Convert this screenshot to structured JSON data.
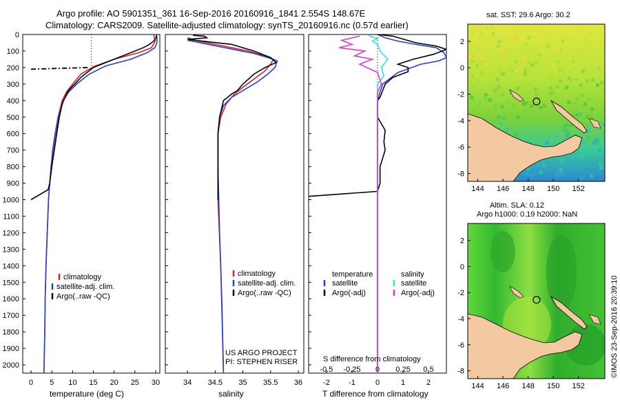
{
  "title_line1": "Argo profile: AO 5901351_361 16-Sep-2016 20160916_1841 2.554S 148.67E",
  "title_line2": "Climatology: CARS2009. Satellite-adjusted climatology: synTS_20160916.nc (0.57d earlier)",
  "credit": "©IMOS 23-Sep-2016 20:39:10",
  "colors": {
    "climatology": "#e31a1c",
    "satellite": "#1f3fd6",
    "argo": "#000000",
    "sal_satellite": "#27e3e3",
    "sal_argo": "#d63adb",
    "land": "#f2c9a0",
    "ocean_deep": "#2f7fd0",
    "ocean_mid": "#38c9a8",
    "ocean_green": "#49c43b",
    "ocean_yellow": "#d8e836"
  },
  "depth_axis": {
    "ticks": [
      "0",
      "100",
      "200",
      "300",
      "400",
      "500",
      "600",
      "700",
      "800",
      "900",
      "1000",
      "1100",
      "1200",
      "1300",
      "1400",
      "1500",
      "1600",
      "1700",
      "1800",
      "1900",
      "2000"
    ]
  },
  "chart_data": [
    {
      "type": "line",
      "title": "",
      "xlabel": "temperature (deg C)",
      "ylabel": "",
      "xlim": [
        -2,
        31
      ],
      "ylim": [
        2050,
        0
      ],
      "xticks": [
        "0",
        "5",
        "10",
        "15",
        "20",
        "25",
        "30"
      ],
      "legend": [
        "climatology",
        "satellite-adj. clim.",
        "Argo(..raw -QC)"
      ],
      "series": [
        {
          "name": "climatology",
          "color_key": "climatology",
          "points": [
            [
              29.5,
              0
            ],
            [
              29.7,
              20
            ],
            [
              29.9,
              40
            ],
            [
              29,
              80
            ],
            [
              26,
              110
            ],
            [
              20,
              150
            ],
            [
              15,
              195
            ],
            [
              12,
              240
            ],
            [
              10,
              300
            ],
            [
              8.5,
              350
            ],
            [
              7.5,
              400
            ],
            [
              6.5,
              500
            ],
            [
              5.8,
              600
            ],
            [
              5.2,
              700
            ],
            [
              4.8,
              800
            ],
            [
              4.5,
              900
            ],
            [
              4.2,
              1000
            ],
            [
              3.9,
              1200
            ],
            [
              3.6,
              1400
            ],
            [
              3.4,
              1600
            ],
            [
              3.3,
              1800
            ],
            [
              3.1,
              2050
            ]
          ]
        },
        {
          "name": "satellite-adj. clim.",
          "color_key": "satellite",
          "points": [
            [
              30.2,
              0
            ],
            [
              30.3,
              20
            ],
            [
              30.3,
              50
            ],
            [
              29.8,
              80
            ],
            [
              28,
              110
            ],
            [
              24,
              150
            ],
            [
              18,
              190
            ],
            [
              14,
              240
            ],
            [
              11,
              300
            ],
            [
              9,
              350
            ],
            [
              7.8,
              400
            ],
            [
              6.6,
              500
            ],
            [
              5.9,
              600
            ],
            [
              5.3,
              700
            ],
            [
              4.9,
              800
            ],
            [
              4.5,
              900
            ],
            [
              4.2,
              1000
            ],
            [
              3.9,
              1200
            ],
            [
              3.6,
              1400
            ],
            [
              3.4,
              1600
            ],
            [
              3.3,
              1800
            ],
            [
              3.1,
              2050
            ]
          ]
        },
        {
          "name": "Argo(..raw -QC)",
          "color_key": "argo",
          "points": [
            [
              30.2,
              5
            ],
            [
              30.1,
              20
            ],
            [
              29.5,
              40
            ],
            [
              28.5,
              60
            ],
            [
              27,
              80
            ],
            [
              25,
              100
            ],
            [
              23,
              120
            ],
            [
              21,
              140
            ],
            [
              19,
              160
            ],
            [
              17,
              180
            ],
            [
              15,
              200
            ],
            [
              14,
              220
            ],
            [
              12,
              260
            ],
            [
              10.5,
              300
            ],
            [
              9,
              340
            ],
            [
              8.2,
              380
            ],
            [
              7.5,
              420
            ],
            [
              6.8,
              500
            ],
            [
              6.2,
              600
            ],
            [
              5.6,
              700
            ],
            [
              5,
              800
            ],
            [
              4.5,
              900
            ],
            [
              4.1,
              940
            ],
            [
              0,
              1000
            ]
          ]
        },
        {
          "name": "Argo spike",
          "color_key": "argo",
          "style": "dashdot",
          "points": [
            [
              0,
              210
            ],
            [
              14,
              200
            ]
          ]
        },
        {
          "name": "Argo dotted",
          "color_key": "argo",
          "style": "dotted",
          "points": [
            [
              14.5,
              0
            ],
            [
              14.5,
              200
            ]
          ]
        }
      ]
    },
    {
      "type": "line",
      "title": "",
      "xlabel": "salinity",
      "ylabel": "",
      "xlim": [
        33.6,
        36.1
      ],
      "ylim": [
        2050,
        0
      ],
      "xticks": [
        "34",
        "34.5",
        "35",
        "35.5",
        "36"
      ],
      "legend": [
        "climatology",
        "satellite-adj. clim.",
        "Argo(..raw -QC)"
      ],
      "annotations": [
        "US ARGO PROJECT",
        "PI: STEPHEN RISER"
      ],
      "series": [
        {
          "name": "climatology",
          "color_key": "climatology",
          "points": [
            [
              34.0,
              20
            ],
            [
              34.2,
              40
            ],
            [
              34.5,
              60
            ],
            [
              34.8,
              80
            ],
            [
              35.1,
              100
            ],
            [
              35.4,
              130
            ],
            [
              35.55,
              150
            ],
            [
              35.5,
              180
            ],
            [
              35.4,
              220
            ],
            [
              35.2,
              270
            ],
            [
              35,
              320
            ],
            [
              34.85,
              360
            ],
            [
              34.7,
              420
            ],
            [
              34.6,
              500
            ],
            [
              34.55,
              600
            ],
            [
              34.55,
              700
            ],
            [
              34.55,
              1000
            ],
            [
              34.6,
              1400
            ],
            [
              34.65,
              2050
            ]
          ]
        },
        {
          "name": "satellite-adj. clim.",
          "color_key": "satellite",
          "points": [
            [
              34.0,
              35
            ],
            [
              34.3,
              55
            ],
            [
              34.6,
              75
            ],
            [
              34.9,
              95
            ],
            [
              35.2,
              115
            ],
            [
              35.45,
              140
            ],
            [
              35.62,
              160
            ],
            [
              35.58,
              200
            ],
            [
              35.45,
              240
            ],
            [
              35.25,
              290
            ],
            [
              35,
              340
            ],
            [
              34.8,
              380
            ],
            [
              34.65,
              430
            ],
            [
              34.58,
              500
            ],
            [
              34.55,
              600
            ],
            [
              34.55,
              800
            ],
            [
              34.58,
              1200
            ],
            [
              34.62,
              1600
            ],
            [
              34.65,
              2050
            ]
          ]
        },
        {
          "name": "Argo(..raw -QC)",
          "color_key": "argo",
          "points": [
            [
              34.1,
              5
            ],
            [
              34.3,
              10
            ],
            [
              34.35,
              20
            ],
            [
              34.0,
              30
            ],
            [
              34.8,
              60
            ],
            [
              35.2,
              100
            ],
            [
              35.5,
              140
            ],
            [
              35.6,
              170
            ],
            [
              35.4,
              200
            ],
            [
              35.2,
              240
            ],
            [
              35,
              300
            ],
            [
              34.9,
              340
            ],
            [
              34.8,
              360
            ],
            [
              34.65,
              400
            ],
            [
              34.58,
              500
            ],
            [
              34.55,
              600
            ],
            [
              34.55,
              700
            ],
            [
              34.55,
              1000
            ]
          ]
        }
      ]
    },
    {
      "type": "line",
      "title": "",
      "xlabel": "T difference from climatology",
      "xlabel_top": "S difference from climatology",
      "ylabel": "",
      "xlim": [
        -2.7,
        2.7
      ],
      "ylim": [
        2050,
        0
      ],
      "xticks": [
        "-2",
        "-1",
        "0",
        "1",
        "2"
      ],
      "xticks_top": [
        "-0.5",
        "-0.25",
        "0",
        "0.25",
        "0.5"
      ],
      "legend": [
        "temperature",
        "satellite",
        "Argo(-adj)",
        "salinity",
        "satellite",
        "Argo(-adj)"
      ],
      "series": [
        {
          "name": "temperature satellite",
          "color_key": "satellite",
          "points": [
            [
              0,
              0
            ],
            [
              0.3,
              20
            ],
            [
              0.8,
              40
            ],
            [
              1.5,
              60
            ],
            [
              2.3,
              80
            ],
            [
              2.6,
              110
            ],
            [
              2.7,
              140
            ],
            [
              2.4,
              160
            ],
            [
              1.7,
              180
            ],
            [
              0.8,
              230
            ],
            [
              0.2,
              300
            ],
            [
              0,
              400
            ],
            [
              0,
              2050
            ]
          ]
        },
        {
          "name": "temperature Argo(-adj)",
          "color_key": "argo",
          "points": [
            [
              0,
              0
            ],
            [
              0.6,
              10
            ],
            [
              1.5,
              50
            ],
            [
              2.3,
              70
            ],
            [
              2.7,
              90
            ],
            [
              2.2,
              120
            ],
            [
              1.4,
              150
            ],
            [
              0.8,
              180
            ],
            [
              1.2,
              200
            ],
            [
              1.2,
              225
            ],
            [
              0.6,
              260
            ],
            [
              0.3,
              300
            ],
            [
              0.1,
              380
            ],
            [
              0,
              400
            ],
            [
              0,
              500
            ],
            [
              0.3,
              580
            ],
            [
              0.25,
              650
            ],
            [
              0.3,
              700
            ],
            [
              0.1,
              800
            ],
            [
              0.1,
              900
            ],
            [
              0,
              950
            ],
            [
              -2.7,
              980
            ]
          ]
        },
        {
          "name": "salinity satellite",
          "color_key": "sal_satellite",
          "points": [
            [
              -0.35,
              5
            ],
            [
              -0.2,
              15
            ],
            [
              0,
              25
            ],
            [
              -0.2,
              40
            ],
            [
              0,
              60
            ],
            [
              0.1,
              100
            ],
            [
              0.4,
              150
            ],
            [
              0.15,
              200
            ],
            [
              0.25,
              250
            ],
            [
              0,
              300
            ],
            [
              0,
              2050
            ]
          ]
        },
        {
          "name": "salinity Argo(-adj)",
          "color_key": "sal_argo",
          "points": [
            [
              -0.7,
              10
            ],
            [
              -1.4,
              35
            ],
            [
              -1,
              60
            ],
            [
              -1.5,
              80
            ],
            [
              -0.5,
              100
            ],
            [
              -0.9,
              130
            ],
            [
              -0.2,
              150
            ],
            [
              -0.7,
              180
            ],
            [
              0,
              230
            ],
            [
              0.15,
              300
            ],
            [
              0,
              350
            ],
            [
              0,
              2050
            ]
          ]
        }
      ]
    }
  ],
  "maps": [
    {
      "type": "heatmap",
      "title": "sat. SST: 29.6 Argo: 30.2",
      "x_ticks": [
        "144",
        "146",
        "148",
        "150",
        "152"
      ],
      "y_ticks": [
        "2",
        "0",
        "-2",
        "-4",
        "-6",
        "-8"
      ],
      "xlim": [
        143.2,
        154.1
      ],
      "ylim": [
        -8.6,
        3.3
      ],
      "float_lon": 148.67,
      "float_lat": -2.554
    },
    {
      "type": "heatmap",
      "title_line1": "Altim. SLA: 0.12",
      "title_line2": "Argo h1000: 0.19 h2000: NaN",
      "x_ticks": [
        "144",
        "146",
        "148",
        "150",
        "152"
      ],
      "y_ticks": [
        "2",
        "0",
        "-2",
        "-4",
        "-6",
        "-8"
      ],
      "xlim": [
        143.2,
        154.1
      ],
      "ylim": [
        -8.6,
        3.3
      ],
      "float_lon": 148.67,
      "float_lat": -2.554
    }
  ]
}
